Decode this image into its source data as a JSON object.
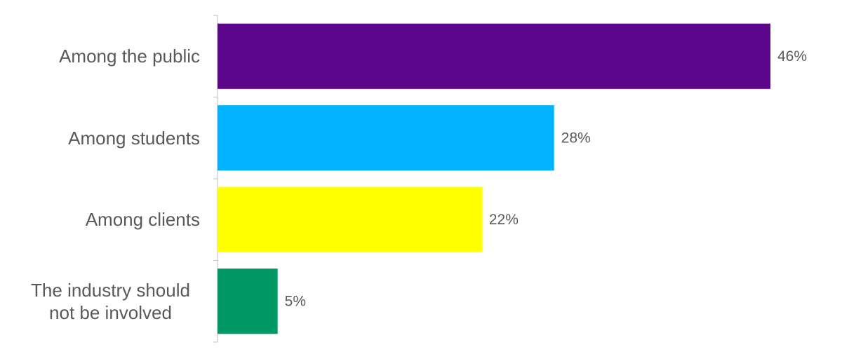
{
  "chart_data": {
    "type": "bar",
    "orientation": "horizontal",
    "categories": [
      "Among the public",
      "Among students",
      "Among clients",
      "The industry should not be involved"
    ],
    "values": [
      46,
      28,
      22,
      5
    ],
    "value_labels": [
      "46%",
      "28%",
      "22%",
      "5%"
    ],
    "colors": [
      "#5c068c",
      "#00b2ff",
      "#ffff00",
      "#009966"
    ]
  }
}
